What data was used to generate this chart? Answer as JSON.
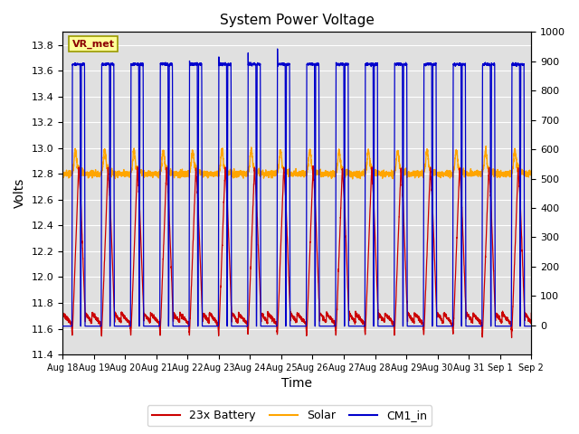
{
  "title": "System Power Voltage",
  "xlabel": "Time",
  "ylabel": "Volts",
  "ylim_left": [
    11.4,
    13.9
  ],
  "ylim_right": [
    -100,
    1000
  ],
  "x_tick_labels": [
    "Aug 18",
    "Aug 19",
    "Aug 20",
    "Aug 21",
    "Aug 22",
    "Aug 23",
    "Aug 24",
    "Aug 25",
    "Aug 26",
    "Aug 27",
    "Aug 28",
    "Aug 29",
    "Aug 30",
    "Aug 31",
    "Sep 1",
    "Sep 2"
  ],
  "background_color": "#e0e0e0",
  "figure_facecolor": "#ffffff",
  "legend_items": [
    "23x Battery",
    "Solar",
    "CM1_in"
  ],
  "legend_colors": [
    "#cc0000",
    "#ffa500",
    "#0000cc"
  ],
  "annotation_text": "VR_met",
  "annotation_box_color": "#ffff99",
  "annotation_box_edge": "#999900",
  "num_days": 16,
  "yticks_left": [
    11.4,
    11.6,
    11.8,
    12.0,
    12.2,
    12.4,
    12.6,
    12.8,
    13.0,
    13.2,
    13.4,
    13.6,
    13.8
  ],
  "yticks_right": [
    0,
    100,
    200,
    300,
    400,
    500,
    600,
    700,
    800,
    900,
    1000
  ]
}
